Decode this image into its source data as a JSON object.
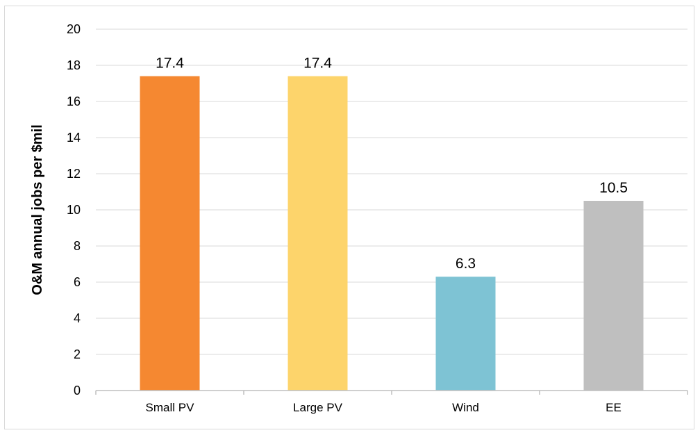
{
  "chart_data": {
    "type": "bar",
    "title": "",
    "xlabel": "",
    "ylabel": "O&M annual jobs per $mil",
    "categories": [
      "Small PV",
      "Large PV",
      "Wind",
      "EE"
    ],
    "values": [
      17.4,
      17.4,
      6.3,
      10.5
    ],
    "data_labels": [
      "17.4",
      "17.4",
      "6.3",
      "10.5"
    ],
    "colors": [
      "#f58831",
      "#fdd46b",
      "#7ec3d4",
      "#bfbfbf"
    ],
    "ylim": [
      0,
      20
    ],
    "yticks": [
      0,
      2,
      4,
      6,
      8,
      10,
      12,
      14,
      16,
      18,
      20
    ],
    "grid": true,
    "legend": "none",
    "colors_gridline": "#d9d9d9",
    "colors_axis": "#bfbfbf"
  }
}
